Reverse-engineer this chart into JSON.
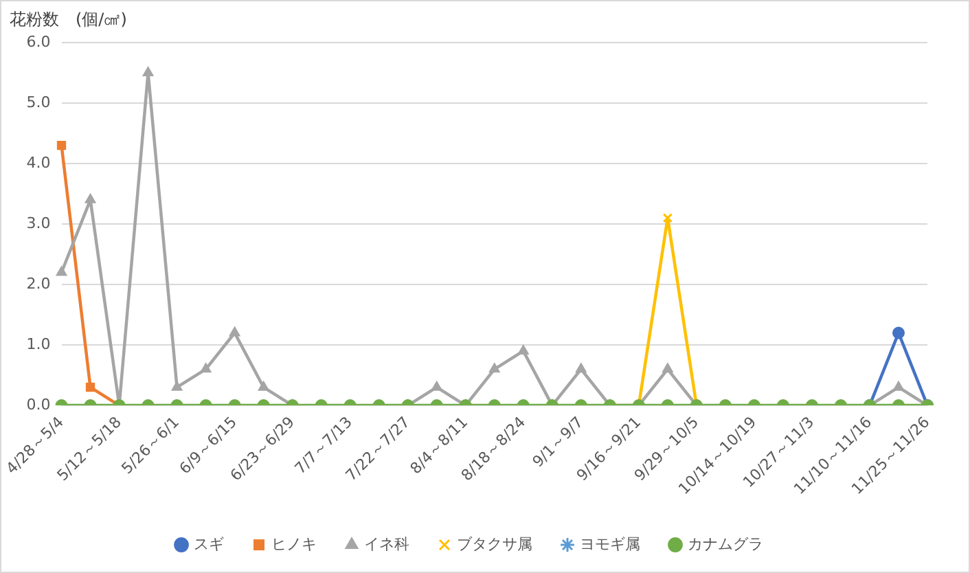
{
  "chart_data": {
    "type": "line",
    "ylabel": "花粉数　(個/㎠)",
    "categories": [
      "4/28～5/4",
      null,
      "5/12～5/18",
      null,
      "5/26～6/1",
      null,
      "6/9～6/15",
      null,
      "6/23～6/29",
      null,
      "7/7～7/13",
      null,
      "7/22～7/27",
      null,
      "8/4～8/11",
      null,
      "8/18～8/24",
      null,
      "9/1～9/7",
      null,
      "9/16～9/21",
      null,
      "9/29～10/5",
      null,
      "10/14～10/19",
      null,
      "10/27～11/3",
      null,
      "11/10～11/16",
      null,
      "11/25～11/26"
    ],
    "series": [
      {
        "name": "スギ",
        "color": "#4472c4",
        "marker": "circle",
        "values": [
          null,
          null,
          null,
          null,
          null,
          null,
          null,
          null,
          null,
          null,
          null,
          null,
          null,
          null,
          null,
          null,
          null,
          null,
          null,
          null,
          null,
          null,
          null,
          null,
          null,
          null,
          null,
          null,
          0,
          1.2,
          0
        ]
      },
      {
        "name": "ヒノキ",
        "color": "#ed7d31",
        "marker": "square",
        "values": [
          4.3,
          0.3,
          0,
          null,
          null,
          null,
          null,
          null,
          null,
          null,
          null,
          null,
          null,
          null,
          null,
          null,
          null,
          null,
          null,
          null,
          null,
          null,
          null,
          null,
          null,
          null,
          null,
          null,
          null,
          null,
          null
        ]
      },
      {
        "name": "イネ科",
        "color": "#a5a5a5",
        "marker": "triangle",
        "values": [
          2.2,
          3.4,
          0,
          5.5,
          0.3,
          0.6,
          1.2,
          0.3,
          0,
          null,
          null,
          null,
          0,
          0.3,
          0,
          0.6,
          0.9,
          0,
          0.6,
          0,
          0,
          0.6,
          0,
          null,
          null,
          null,
          null,
          null,
          0,
          0.3,
          0
        ]
      },
      {
        "name": "ブタクサ属",
        "color": "#ffc000",
        "marker": "cross",
        "values": [
          null,
          null,
          null,
          null,
          null,
          null,
          null,
          null,
          null,
          null,
          null,
          null,
          null,
          null,
          null,
          null,
          null,
          null,
          null,
          null,
          0,
          3.1,
          0,
          null,
          null,
          null,
          null,
          null,
          null,
          null,
          null
        ]
      },
      {
        "name": "ヨモギ属",
        "color": "#5b9bd5",
        "marker": "star",
        "values": [
          null,
          null,
          null,
          null,
          null,
          null,
          null,
          null,
          null,
          null,
          null,
          null,
          null,
          null,
          null,
          null,
          null,
          null,
          null,
          null,
          null,
          null,
          null,
          null,
          null,
          null,
          null,
          null,
          null,
          null,
          null
        ]
      },
      {
        "name": "カナムグラ",
        "color": "#70ad47",
        "marker": "circle",
        "values": [
          0,
          0,
          0,
          0,
          0,
          0,
          0,
          0,
          0,
          0,
          0,
          0,
          0,
          0,
          0,
          0,
          0,
          0,
          0,
          0,
          0,
          0,
          0,
          0,
          0,
          0,
          0,
          0,
          0,
          0,
          0
        ]
      }
    ],
    "ylim": [
      0,
      6
    ],
    "yticks": [
      {
        "value": 0,
        "label": "0.0"
      },
      {
        "value": 1,
        "label": "1.0"
      },
      {
        "value": 2,
        "label": "2.0"
      },
      {
        "value": 3,
        "label": "3.0"
      },
      {
        "value": 4,
        "label": "4.0"
      },
      {
        "value": 5,
        "label": "5.0"
      },
      {
        "value": 6,
        "label": "6.0"
      }
    ],
    "grid": "y",
    "legend": "bottom",
    "line_style": "solid"
  }
}
